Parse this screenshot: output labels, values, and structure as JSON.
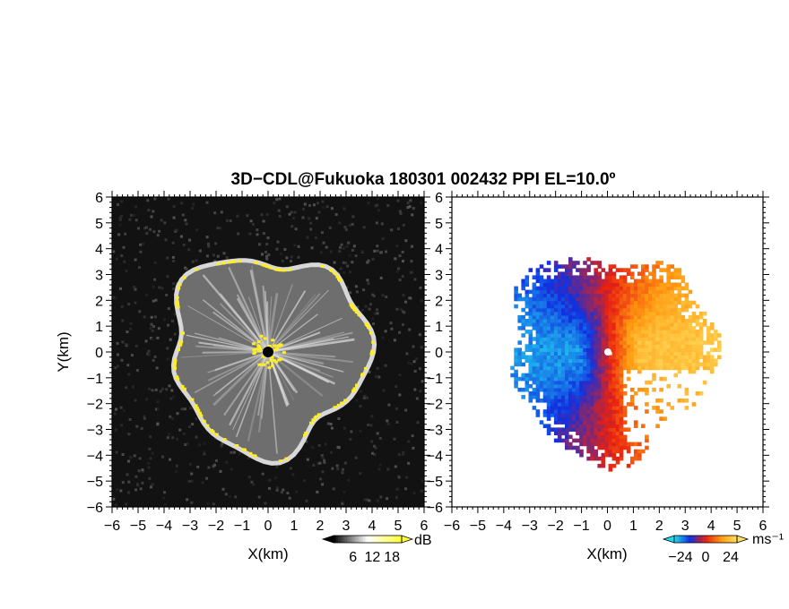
{
  "chart_data": {
    "title": "3D−CDL@Fukuoka 180301 002432 PPI EL=10.0º",
    "panels": [
      {
        "type": "heatmap",
        "quantity": "reflectivity",
        "xlabel": "X(km)",
        "ylabel": "Y(km)",
        "xlim": [
          -6,
          6
        ],
        "ylim": [
          -6,
          6
        ],
        "xticks": [
          "−6",
          "−5",
          "−4",
          "−3",
          "−2",
          "−1",
          "0",
          "1",
          "2",
          "3",
          "4",
          "5",
          "6"
        ],
        "yticks": [
          "6",
          "5",
          "4",
          "3",
          "2",
          "1",
          "0",
          "−1",
          "−2",
          "−3",
          "−4",
          "−5",
          "−6"
        ],
        "colormap": [
          "#000000",
          "#ffffff",
          "#ffff33"
        ],
        "background": "#121212",
        "colorbar": {
          "unit": "dB",
          "ticks": [
            "6",
            "12",
            "18"
          ],
          "range": [
            0,
            21
          ]
        }
      },
      {
        "type": "heatmap",
        "quantity": "doppler velocity",
        "xlabel": "X(km)",
        "ylabel": "",
        "xlim": [
          -6,
          6
        ],
        "ylim": [
          -6,
          6
        ],
        "xticks": [
          "−6",
          "−5",
          "−4",
          "−3",
          "−2",
          "−1",
          "0",
          "1",
          "2",
          "3",
          "4",
          "5",
          "6"
        ],
        "yticks": [
          "6",
          "5",
          "4",
          "3",
          "2",
          "1",
          "0",
          "−1",
          "−2",
          "−3",
          "−4",
          "−5",
          "−6"
        ],
        "colormap": [
          "#22d8f0",
          "#1030e0",
          "#e82010",
          "#ff9a10",
          "#ffe060"
        ],
        "background": "#ffffff",
        "colorbar": {
          "unit": "ms⁻¹",
          "ticks": [
            "−24",
            "0",
            "24"
          ],
          "range": [
            -30,
            30
          ]
        }
      }
    ]
  }
}
